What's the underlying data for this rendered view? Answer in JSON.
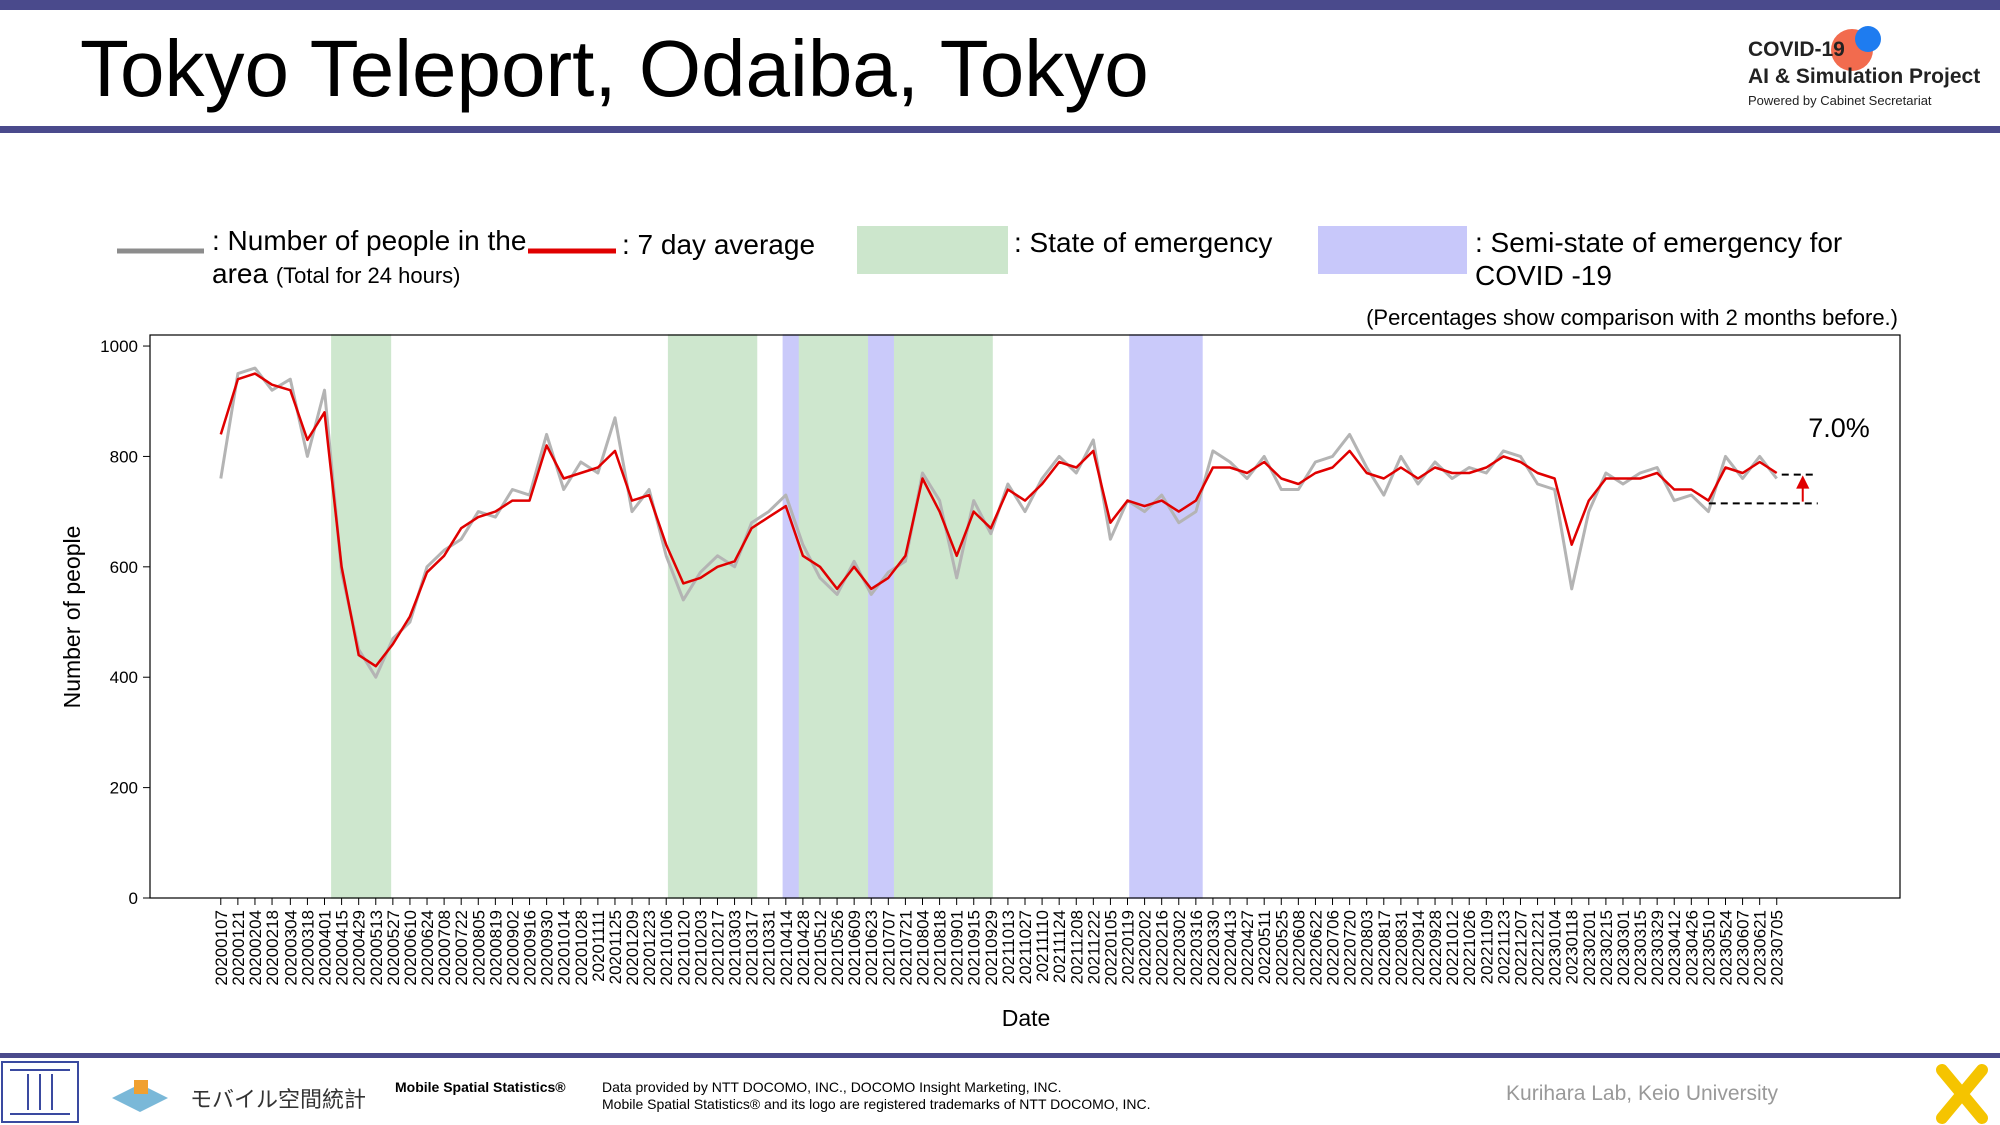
{
  "header": {
    "title": "Tokyo Teleport, Odaiba, Tokyo",
    "logo_line1": "COVID-19",
    "logo_line2": "AI & Simulation Project",
    "logo_line3": "Powered by Cabinet Secretariat"
  },
  "chart_data": {
    "type": "line",
    "note": "(Percentages show comparison with 2 months before.)",
    "ylabel": "Number of people",
    "xlabel": "Date",
    "xlim": [
      "20191110",
      "20231014"
    ],
    "ylim": [
      0,
      1020
    ],
    "yticks": [
      0,
      200,
      400,
      600,
      800,
      1000
    ],
    "x": [
      "20200107",
      "20200121",
      "20200204",
      "20200218",
      "20200304",
      "20200318",
      "20200401",
      "20200415",
      "20200429",
      "20200513",
      "20200527",
      "20200610",
      "20200624",
      "20200708",
      "20200722",
      "20200805",
      "20200819",
      "20200902",
      "20200916",
      "20200930",
      "20201014",
      "20201028",
      "20201111",
      "20201125",
      "20201209",
      "20201223",
      "20210106",
      "20210120",
      "20210203",
      "20210217",
      "20210303",
      "20210317",
      "20210331",
      "20210414",
      "20210428",
      "20210512",
      "20210526",
      "20210609",
      "20210623",
      "20210707",
      "20210721",
      "20210804",
      "20210818",
      "20210901",
      "20210915",
      "20210929",
      "20211013",
      "20211027",
      "20211110",
      "20211124",
      "20211208",
      "20211222",
      "20220105",
      "20220119",
      "20220202",
      "20220216",
      "20220302",
      "20220316",
      "20220330",
      "20220413",
      "20220427",
      "20220511",
      "20220525",
      "20220608",
      "20220622",
      "20220706",
      "20220720",
      "20220803",
      "20220817",
      "20220831",
      "20220914",
      "20220928",
      "20221012",
      "20221026",
      "20221109",
      "20221123",
      "20221207",
      "20221221",
      "20230104",
      "20230118",
      "20230201",
      "20230215",
      "20230301",
      "20230315",
      "20230329",
      "20230412",
      "20230426",
      "20230510",
      "20230524",
      "20230607",
      "20230621",
      "20230705"
    ],
    "series": [
      {
        "name": ": Number of people in the area",
        "note": "(Total for 24 hours)",
        "color": "#b4b4b4",
        "legend_color": "#8c8c8c",
        "values": [
          760,
          950,
          960,
          920,
          940,
          800,
          920,
          590,
          450,
          400,
          470,
          500,
          600,
          630,
          650,
          700,
          690,
          740,
          730,
          840,
          740,
          790,
          770,
          870,
          700,
          740,
          620,
          540,
          590,
          620,
          600,
          680,
          700,
          730,
          640,
          580,
          550,
          610,
          550,
          590,
          610,
          770,
          720,
          580,
          720,
          660,
          750,
          700,
          760,
          800,
          770,
          830,
          650,
          720,
          700,
          730,
          680,
          700,
          810,
          790,
          760,
          800,
          740,
          740,
          790,
          800,
          840,
          780,
          730,
          800,
          750,
          790,
          760,
          780,
          770,
          810,
          800,
          750,
          740,
          560,
          700,
          770,
          750,
          770,
          780,
          720,
          730,
          700,
          800,
          760,
          800,
          760
        ]
      },
      {
        "name": ": 7 day average",
        "color": "#e00000",
        "values": [
          840,
          940,
          950,
          930,
          920,
          830,
          880,
          600,
          440,
          420,
          460,
          510,
          590,
          620,
          670,
          690,
          700,
          720,
          720,
          820,
          760,
          770,
          780,
          810,
          720,
          730,
          640,
          570,
          580,
          600,
          610,
          670,
          690,
          710,
          620,
          600,
          560,
          600,
          560,
          580,
          620,
          760,
          700,
          620,
          700,
          670,
          740,
          720,
          750,
          790,
          780,
          810,
          680,
          720,
          710,
          720,
          700,
          720,
          780,
          780,
          770,
          790,
          760,
          750,
          770,
          780,
          810,
          770,
          760,
          780,
          760,
          780,
          770,
          770,
          780,
          800,
          790,
          770,
          760,
          640,
          720,
          760,
          760,
          760,
          770,
          740,
          740,
          720,
          780,
          770,
          790,
          770
        ]
      }
    ],
    "spans": [
      {
        "name": ": State of emergency",
        "color": "#cce6cc",
        "ranges": [
          [
            "20200407",
            "20200525"
          ],
          [
            "20210108",
            "20210321"
          ],
          [
            "20210425",
            "20210620"
          ],
          [
            "20210712",
            "20210930"
          ]
        ]
      },
      {
        "name": ": Semi-state of emergency for COVID -19",
        "color": "#c8c8fa",
        "ranges": [
          [
            "20210412",
            "20210424"
          ],
          [
            "20210621",
            "20210711"
          ],
          [
            "20220121",
            "20220321"
          ]
        ]
      }
    ],
    "annotation": {
      "text": "7.0%",
      "base": 715,
      "current": 767
    }
  },
  "footer": {
    "logo_jp": "モバイル空間統計",
    "brand": "Mobile Spatial Statistics®",
    "credit1": "Data provided by NTT DOCOMO, INC., DOCOMO Insight Marketing, INC.",
    "credit2": "Mobile Spatial Statistics® and its logo are registered trademarks of NTT DOCOMO, INC.",
    "lab": "Kurihara Lab, Keio University"
  }
}
